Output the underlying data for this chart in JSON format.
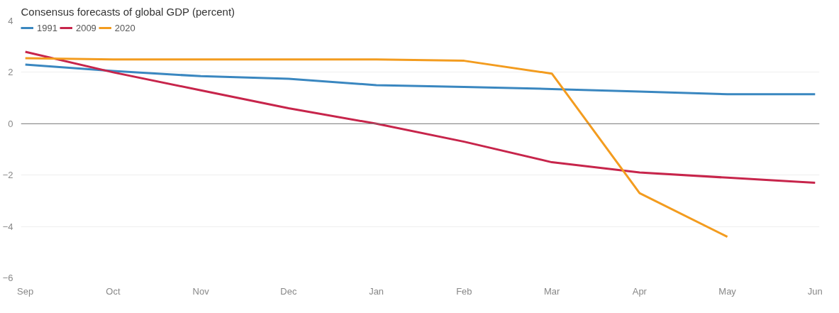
{
  "chart_data": {
    "type": "line",
    "title": "Consensus forecasts of global GDP (percent)",
    "categories": [
      "Sep",
      "Oct",
      "Nov",
      "Dec",
      "Jan",
      "Feb",
      "Mar",
      "Apr",
      "May",
      "Jun"
    ],
    "series": [
      {
        "name": "1991",
        "color": "#3a87c0",
        "values": [
          2.3,
          2.05,
          1.85,
          1.75,
          1.5,
          1.43,
          1.35,
          1.25,
          1.15,
          1.15
        ]
      },
      {
        "name": "2009",
        "color": "#c7254b",
        "values": [
          2.8,
          2.0,
          1.3,
          0.6,
          0.0,
          -0.7,
          -1.5,
          -1.9,
          -2.1,
          -2.3
        ]
      },
      {
        "name": "2020",
        "color": "#f39c1f",
        "values": [
          2.55,
          2.5,
          2.5,
          2.5,
          2.5,
          2.45,
          1.95,
          -2.7,
          -4.4,
          null
        ]
      }
    ],
    "ylim": [
      -6,
      4
    ],
    "yticks": [
      -6,
      -4,
      -2,
      0,
      2,
      4
    ],
    "grid": "y",
    "legend": "top left",
    "ref_lines": [
      {
        "axis": "y",
        "value": 0,
        "color": "#777777"
      }
    ]
  }
}
